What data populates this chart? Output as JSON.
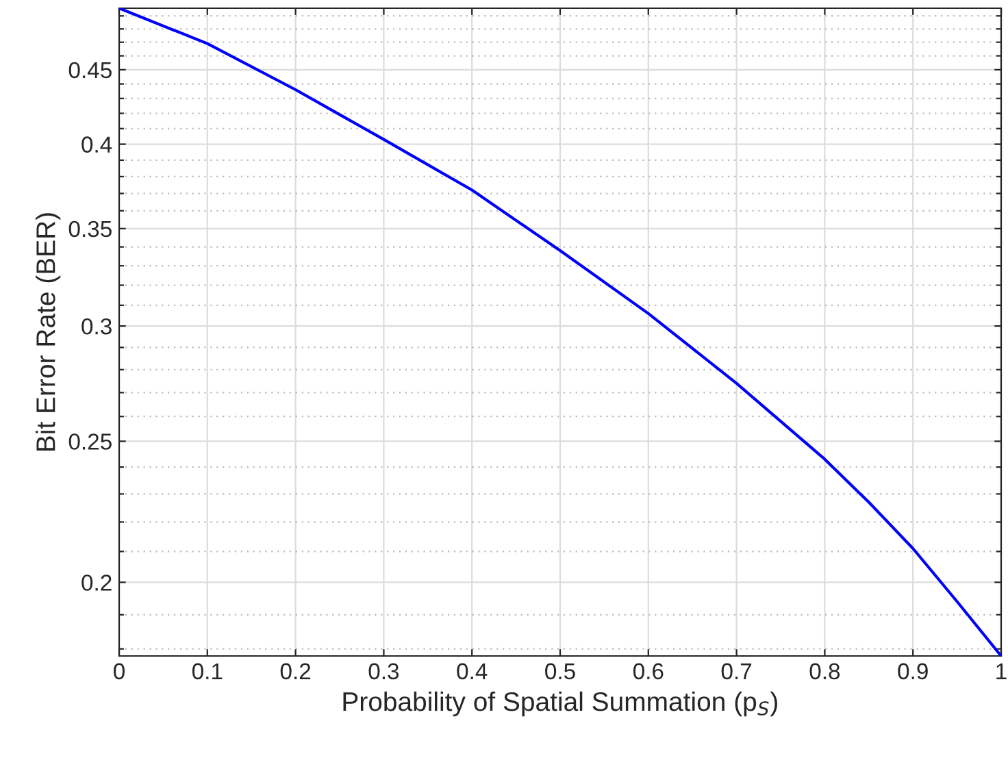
{
  "chart_data": {
    "type": "line",
    "xlabel": "Probability of Spatial Summation (p$_{S}$)",
    "ylabel": "Bit Error Rate (BER)",
    "log": "y",
    "grid": true,
    "marker": "none",
    "line_style": "solid",
    "series": [
      {
        "color": "#0000ff",
        "x": [
          0,
          0.1,
          0.2,
          0.3,
          0.4,
          0.5,
          0.6,
          0.7,
          0.8,
          0.85,
          0.9,
          0.95,
          1.0
        ],
        "values": [
          0.496,
          0.469,
          0.436,
          0.403,
          0.372,
          0.338,
          0.306,
          0.274,
          0.243,
          0.227,
          0.211,
          0.194,
          0.178
        ]
      }
    ],
    "xlim": [
      0,
      1
    ],
    "xticks": [
      0,
      0.1,
      0.2,
      0.3,
      0.4,
      0.5,
      0.6,
      0.7,
      0.8,
      0.9,
      1
    ],
    "ylim": [
      0.178,
      0.496
    ],
    "yticks": [
      {
        "value": 0.18,
        "label": null
      },
      {
        "value": 0.19,
        "label": null
      },
      0.2,
      {
        "value": 0.21,
        "label": null
      },
      {
        "value": 0.22,
        "label": null
      },
      {
        "value": 0.23,
        "label": null
      },
      {
        "value": 0.24,
        "label": null
      },
      0.25,
      {
        "value": 0.26,
        "label": null
      },
      {
        "value": 0.27,
        "label": null
      },
      {
        "value": 0.28,
        "label": null
      },
      {
        "value": 0.29,
        "label": null
      },
      0.3,
      {
        "value": 0.31,
        "label": null
      },
      {
        "value": 0.32,
        "label": null
      },
      {
        "value": 0.33,
        "label": null
      },
      {
        "value": 0.34,
        "label": null
      },
      0.35,
      {
        "value": 0.36,
        "label": null
      },
      {
        "value": 0.37,
        "label": null
      },
      {
        "value": 0.38,
        "label": null
      },
      {
        "value": 0.39,
        "label": null
      },
      0.4,
      {
        "value": 0.41,
        "label": null
      },
      {
        "value": 0.42,
        "label": null
      },
      {
        "value": 0.43,
        "label": null
      },
      {
        "value": 0.44,
        "label": null
      },
      0.45,
      {
        "value": 0.46,
        "label": null
      },
      {
        "value": 0.47,
        "label": null
      },
      {
        "value": 0.48,
        "label": null
      },
      {
        "value": 0.49,
        "label": null
      }
    ]
  }
}
